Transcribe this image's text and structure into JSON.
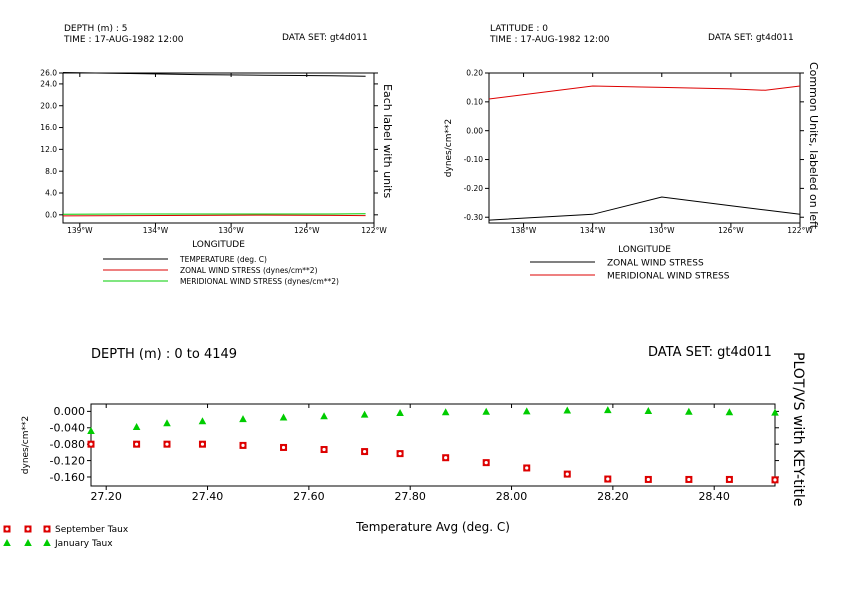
{
  "chart_data": [
    {
      "type": "line",
      "header": {
        "left": [
          "DEPTH (m) : 5",
          "TIME : 17-AUG-1982 12:00"
        ],
        "right": "DATA SET: gt4d011"
      },
      "x": [
        140,
        136,
        132,
        128,
        124,
        122
      ],
      "x_ticks": [
        "139°W",
        "134°W",
        "130°W",
        "126°W",
        "122°W"
      ],
      "x_tick_values": [
        139,
        134.5,
        130,
        125.5,
        121.5
      ],
      "xlim": [
        140,
        121.5
      ],
      "xlabel": "LONGITUDE",
      "ylim": [
        -1.5,
        26
      ],
      "y_ticks": [
        "26.0",
        "24.0",
        "20.0",
        "16.0",
        "12.0",
        "8.0",
        "4.0",
        "0.0"
      ],
      "y_tick_values": [
        26,
        24,
        20,
        16,
        12,
        8,
        4,
        0
      ],
      "right_label": "Each label with units",
      "grid": false,
      "legend_position": "bottom",
      "series": [
        {
          "name": "TEMPERATURE (deg. C)",
          "color": "#000000",
          "values": [
            26.1,
            25.9,
            25.7,
            25.6,
            25.5,
            25.4
          ]
        },
        {
          "name": "ZONAL WIND STRESS (dynes/cm**2)",
          "color": "#dd0000",
          "values": [
            -0.2,
            -0.15,
            -0.1,
            -0.05,
            -0.1,
            -0.15
          ]
        },
        {
          "name": "MERIDIONAL WIND STRESS (dynes/cm**2)",
          "color": "#00cc00",
          "values": [
            0.1,
            0.15,
            0.15,
            0.15,
            0.15,
            0.2
          ]
        }
      ]
    },
    {
      "type": "line",
      "header": {
        "left": [
          "LATITUDE : 0",
          "TIME : 17-AUG-1982 12:00"
        ],
        "right": "DATA SET: gt4d011"
      },
      "x": [
        140,
        134,
        130,
        126,
        124,
        122
      ],
      "x_ticks": [
        "138°W",
        "134°W",
        "130°W",
        "126°W",
        "122°W"
      ],
      "x_tick_values": [
        138,
        134,
        130,
        126,
        122
      ],
      "xlim": [
        140,
        122
      ],
      "xlabel": "LONGITUDE",
      "ylim": [
        -0.32,
        0.2
      ],
      "y_ticks": [
        "0.20",
        "0.10",
        "0.00",
        "-0.10",
        "-0.20",
        "-0.30"
      ],
      "y_tick_values": [
        0.2,
        0.1,
        0,
        -0.1,
        -0.2,
        -0.3
      ],
      "ylabel": "dynes/cm**2",
      "right_label": "Common Units, labeled on left",
      "grid": false,
      "legend_position": "bottom",
      "series": [
        {
          "name": "ZONAL WIND STRESS",
          "color": "#000000",
          "values": [
            -0.31,
            -0.29,
            -0.23,
            -0.26,
            -0.275,
            -0.29
          ]
        },
        {
          "name": "MERIDIONAL WIND STRESS",
          "color": "#dd0000",
          "values": [
            0.11,
            0.155,
            0.15,
            0.145,
            0.14,
            0.155
          ]
        }
      ]
    },
    {
      "type": "scatter",
      "header": {
        "left": [
          "DEPTH (m) : 0 to 4149"
        ],
        "right": "DATA SET: gt4d011"
      },
      "xlim": [
        27.17,
        28.52
      ],
      "x_ticks": [
        "27.20",
        "27.40",
        "27.60",
        "27.80",
        "28.00",
        "28.20",
        "28.40"
      ],
      "x_tick_values": [
        27.2,
        27.4,
        27.6,
        27.8,
        28.0,
        28.2,
        28.4
      ],
      "xlabel": "Temperature Avg (deg. C)",
      "ylim": [
        -0.182,
        0.018
      ],
      "y_ticks": [
        "0.000",
        "-0.040",
        "-0.080",
        "-0.120",
        "-0.160"
      ],
      "y_tick_values": [
        0,
        -0.04,
        -0.08,
        -0.12,
        -0.16
      ],
      "ylabel": "dynes/cm**2",
      "right_label": "PLOT/VS with KEY-title",
      "grid": false,
      "legend_position": "bottom-left",
      "series": [
        {
          "name": "September Taux",
          "color": "#dd0000",
          "marker": "square-circle",
          "x": [
            27.17,
            27.26,
            27.32,
            27.39,
            27.47,
            27.55,
            27.63,
            27.71,
            27.78,
            27.87,
            27.95,
            28.03,
            28.11,
            28.19,
            28.27,
            28.35,
            28.43,
            28.52
          ],
          "y": [
            -0.08,
            -0.08,
            -0.08,
            -0.08,
            -0.083,
            -0.088,
            -0.093,
            -0.098,
            -0.103,
            -0.113,
            -0.125,
            -0.138,
            -0.153,
            -0.165,
            -0.166,
            -0.166,
            -0.166,
            -0.167
          ]
        },
        {
          "name": "January Taux",
          "color": "#00cc00",
          "marker": "triangle",
          "x": [
            27.17,
            27.26,
            27.32,
            27.39,
            27.47,
            27.55,
            27.63,
            27.71,
            27.78,
            27.87,
            27.95,
            28.03,
            28.11,
            28.19,
            28.27,
            28.35,
            28.43,
            28.52
          ],
          "y": [
            -0.048,
            -0.038,
            -0.029,
            -0.024,
            -0.019,
            -0.015,
            -0.012,
            -0.008,
            -0.004,
            -0.002,
            -0.001,
            0.0,
            0.002,
            0.003,
            0.001,
            -0.001,
            -0.002,
            -0.003
          ]
        }
      ]
    }
  ]
}
